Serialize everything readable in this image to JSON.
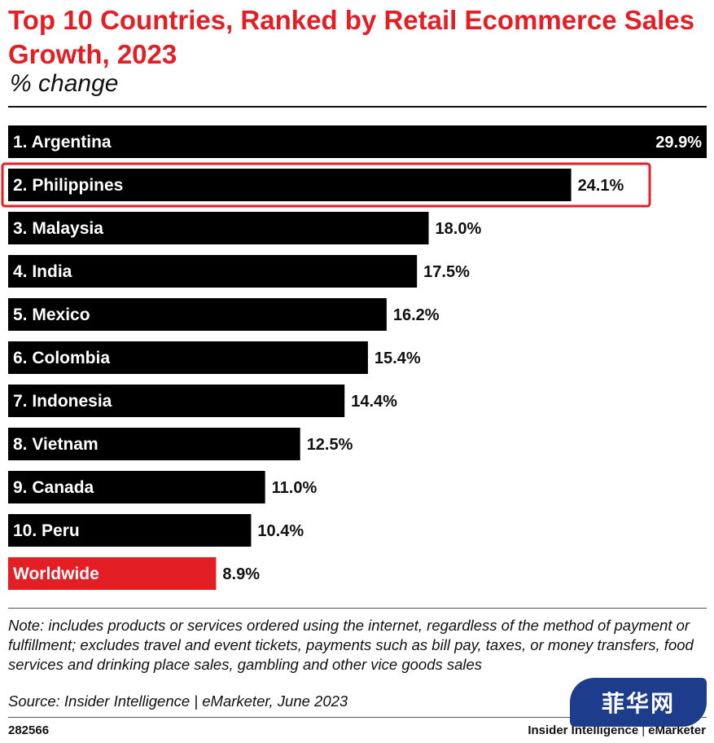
{
  "header": {
    "title": "Top 10 Countries, Ranked by Retail Ecommerce Sales Growth, 2023",
    "subtitle": "% change"
  },
  "chart_data": {
    "type": "bar",
    "orientation": "horizontal",
    "title": "Top 10 Countries, Ranked by Retail Ecommerce Sales Growth, 2023",
    "subtitle": "% change",
    "categories": [
      "1. Argentina",
      "2. Philippines",
      "3. Malaysia",
      "4. India",
      "5. Mexico",
      "6. Colombia",
      "7. Indonesia",
      "8. Vietnam",
      "9. Canada",
      "10. Peru",
      "Worldwide"
    ],
    "values": [
      29.9,
      24.1,
      18.0,
      17.5,
      16.2,
      15.4,
      14.4,
      12.5,
      11.0,
      10.4,
      8.9
    ],
    "value_labels": [
      "29.9%",
      "24.1%",
      "18.0%",
      "17.5%",
      "16.2%",
      "15.4%",
      "14.4%",
      "12.5%",
      "11.0%",
      "10.4%",
      "8.9%"
    ],
    "colors": [
      "#000000",
      "#000000",
      "#000000",
      "#000000",
      "#000000",
      "#000000",
      "#000000",
      "#000000",
      "#000000",
      "#000000",
      "#e31e24"
    ],
    "highlighted_category": "2. Philippines",
    "highlight_color": "#e31e24",
    "xlim": [
      0,
      29.9
    ],
    "grid": false,
    "legend": "none"
  },
  "footer": {
    "note": "Note: includes products or services ordered using the internet, regardless of the method of payment or fulfillment; excludes travel and event tickets, payments such as bill pay, taxes, or money transfers, food services and drinking place sales, gambling and other vice goods sales",
    "source": "Source: Insider Intelligence | eMarketer, June 2023",
    "chart_id": "282566",
    "brand_left": "Insider Intelligence",
    "brand_sep": "|",
    "brand_right": "eMarketer"
  },
  "watermark": {
    "text": "菲华网"
  }
}
